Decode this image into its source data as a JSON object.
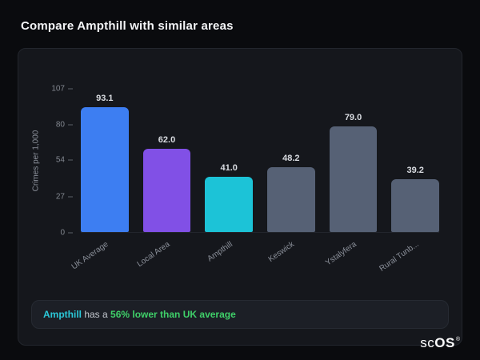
{
  "page": {
    "title": "Compare Ampthill with similar areas"
  },
  "chart_data": {
    "type": "bar",
    "title": "",
    "xlabel": "",
    "ylabel": "Crimes per 1,000",
    "ylim": [
      0,
      107
    ],
    "yticks": [
      107,
      80,
      54,
      27,
      0
    ],
    "grid": false,
    "legend": false,
    "categories": [
      "UK Average",
      "Local Area",
      "Ampthill",
      "Keswick",
      "Ystalyfera",
      "Rural Tunb..."
    ],
    "values": [
      93.1,
      62.0,
      41.0,
      48.2,
      79.0,
      39.2
    ],
    "value_labels": [
      "93.1",
      "62.0",
      "41.0",
      "48.2",
      "79.0",
      "39.2"
    ],
    "bar_colors": [
      "#3d7ef2",
      "#8150e6",
      "#1cc3d7",
      "#566175",
      "#566175",
      "#566175"
    ]
  },
  "annotation": {
    "subject": "Ampthill",
    "middle": " has a ",
    "highlight": "56% lower than UK average"
  },
  "branding": {
    "logo_prefix": "sc",
    "logo_suffix": "OS",
    "registered": "®"
  },
  "colors": {
    "background": "#0a0b0e",
    "card": "#15171c",
    "accent_blue": "#3d7ef2",
    "accent_purple": "#8150e6",
    "accent_teal": "#1cc3d7",
    "neutral_bar": "#566175",
    "positive_green": "#3fd069"
  }
}
